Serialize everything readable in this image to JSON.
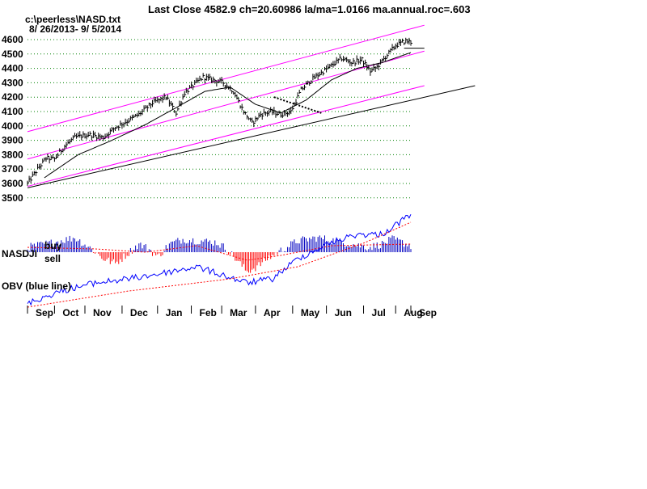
{
  "header": {
    "title": "Last Close 4582.9 ch=20.60986  la/ma=1.0166 ma.annual.roc=.603",
    "file_path": "c:\\peerless\\NASD.txt",
    "date_range": "8/ 26/2013- 9/ 5/2014"
  },
  "indicators": {
    "nasdji_label": "NASDJI",
    "buy_label": "buy",
    "sell_label": "sell",
    "obv_label": "OBV (blue line)"
  },
  "colors": {
    "price_bar": "#000000",
    "channel": "#ff00ff",
    "trendline": "#000000",
    "moving_average": "#000000",
    "grid": "#008000",
    "positive_hist": "#0000c0",
    "negative_hist": "#ff0000",
    "indicator_ma": "#ff0000",
    "obv_line": "#0000ff"
  },
  "chart_data": {
    "type": "ohlc",
    "title": "Last Close 4582.9 ch=20.60986  la/ma=1.0166 ma.annual.roc=.603",
    "ylim": [
      3450,
      4720
    ],
    "y_ticks": [
      3500,
      3600,
      3700,
      3800,
      3900,
      4000,
      4100,
      4200,
      4300,
      4400,
      4500,
      4600
    ],
    "x_ticks": [
      "Sep",
      "Oct",
      "Nov",
      "Dec",
      "Jan",
      "Feb",
      "Mar",
      "Apr",
      "May",
      "Jun",
      "Jul",
      "Aug",
      "Sep"
    ],
    "grid": true,
    "last_close": 4582.9,
    "price_anchors": [
      [
        0,
        3600
      ],
      [
        6,
        3700
      ],
      [
        11,
        3775
      ],
      [
        16,
        3770
      ],
      [
        22,
        3860
      ],
      [
        28,
        3920
      ],
      [
        36,
        3940
      ],
      [
        45,
        3920
      ],
      [
        52,
        3990
      ],
      [
        60,
        4040
      ],
      [
        66,
        4080
      ],
      [
        74,
        4160
      ],
      [
        82,
        4200
      ],
      [
        88,
        4090
      ],
      [
        93,
        4230
      ],
      [
        99,
        4290
      ],
      [
        104,
        4340
      ],
      [
        110,
        4320
      ],
      [
        116,
        4300
      ],
      [
        122,
        4240
      ],
      [
        128,
        4100
      ],
      [
        133,
        4020
      ],
      [
        138,
        4080
      ],
      [
        144,
        4100
      ],
      [
        150,
        4080
      ],
      [
        156,
        4100
      ],
      [
        162,
        4250
      ],
      [
        168,
        4320
      ],
      [
        174,
        4370
      ],
      [
        180,
        4420
      ],
      [
        186,
        4470
      ],
      [
        192,
        4440
      ],
      [
        198,
        4460
      ],
      [
        203,
        4380
      ],
      [
        207,
        4410
      ],
      [
        212,
        4480
      ],
      [
        218,
        4560
      ],
      [
        224,
        4590
      ],
      [
        227,
        4583
      ]
    ],
    "moving_average_anchors": [
      [
        10,
        3640
      ],
      [
        30,
        3800
      ],
      [
        50,
        3900
      ],
      [
        70,
        4010
      ],
      [
        90,
        4140
      ],
      [
        105,
        4240
      ],
      [
        120,
        4270
      ],
      [
        135,
        4150
      ],
      [
        150,
        4090
      ],
      [
        165,
        4180
      ],
      [
        180,
        4320
      ],
      [
        195,
        4400
      ],
      [
        210,
        4440
      ],
      [
        227,
        4510
      ]
    ],
    "upper_channel": [
      [
        0,
        3960
      ],
      [
        235,
        4700
      ]
    ],
    "middle_channel": [
      [
        0,
        3770
      ],
      [
        235,
        4520
      ]
    ],
    "lower_channel": [
      [
        0,
        3580
      ],
      [
        235,
        4280
      ]
    ],
    "support_trendline": [
      [
        0,
        3570
      ],
      [
        265,
        4280
      ]
    ],
    "dotted_trendline": [
      [
        146,
        4200
      ],
      [
        174,
        4090
      ]
    ],
    "resistance_line": [
      [
        223,
        4540
      ],
      [
        235,
        4540
      ]
    ]
  }
}
